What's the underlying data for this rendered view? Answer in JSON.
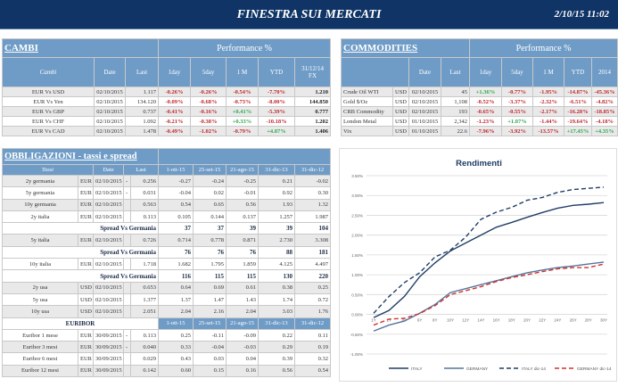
{
  "header": {
    "title": "FINESTRA SUI MERCATI",
    "datetime": "2/10/15 11:02"
  },
  "cambi": {
    "title": "CAMBI",
    "performance": "Performance  %",
    "columns": [
      "Cambi",
      "Date",
      "Last",
      "1day",
      "5day",
      "1 M",
      "YTD",
      "31/12/14 FX"
    ],
    "rows": [
      [
        "EUR Vs USD",
        "02/10/2015",
        "1.117",
        "-0.26%",
        "-0.26%",
        "-0.54%",
        "-7.70%",
        "1.210"
      ],
      [
        "EUR Vs Yen",
        "02/10/2015",
        "134.120",
        "-0.09%",
        "-0.68%",
        "-0.73%",
        "-8.00%",
        "144.850"
      ],
      [
        "EUR Vs GBP",
        "02/10/2015",
        "0.737",
        "-0.41%",
        "-0.16%",
        "+0.41%",
        "-5.39%",
        "0.777"
      ],
      [
        "EUR Vs CHF",
        "02/10/2015",
        "1.092",
        "-0.21%",
        "-0.38%",
        "+0.33%",
        "-10.18%",
        "1.202"
      ],
      [
        "EUR Vs CAD",
        "02/10/2015",
        "1.478",
        "-0.49%",
        "-1.02%",
        "-0.79%",
        "+4.87%",
        "1.406"
      ]
    ]
  },
  "commodities": {
    "title": "COMMODITIES",
    "performance": "Performance  %",
    "columns": [
      "Date",
      "Last",
      "1day",
      "5day",
      "1 M",
      "YTD",
      "2014"
    ],
    "rows": [
      [
        "Crude Oil WTI",
        "USD",
        "02/10/2015",
        "45",
        "+1.36%",
        "-0.77%",
        "-1.95%",
        "-14.87%",
        "-45.36%"
      ],
      [
        "Gold $/Oz",
        "USD",
        "02/10/2015",
        "1,108",
        "-0.52%",
        "-3.37%",
        "-2.32%",
        "-6.51%",
        "-4.82%"
      ],
      [
        "CRB Commodity",
        "USD",
        "02/10/2015",
        "193",
        "-0.65%",
        "-0.55%",
        "-2.17%",
        "-16.28%",
        "-18.85%"
      ],
      [
        "London Metal",
        "USD",
        "01/10/2015",
        "2,342",
        "-1.23%",
        "+1.07%",
        "-1.44%",
        "-19.64%",
        "-4.18%"
      ],
      [
        "Vix",
        "USD",
        "01/10/2015",
        "22.6",
        "-7.96%",
        "-3.92%",
        "-13.57%",
        "+17.45%",
        "+4.35%"
      ]
    ]
  },
  "obbligazioni": {
    "title": "OBBLIGAZIONI - tassi e spread",
    "columns": [
      "Tassi",
      "Date",
      "Last",
      "1-ott-15",
      "25-set-15",
      "21-ago-15",
      "31-dic-13",
      "31-dic-12"
    ],
    "rows": [
      {
        "type": "row",
        "cells": [
          "2y germania",
          "EUR",
          "02/10/2015",
          "-",
          "0.256",
          "-0.27",
          "-0.24",
          "-0.25",
          "0.21",
          "-0.02"
        ]
      },
      {
        "type": "row",
        "cells": [
          "5y germania",
          "EUR",
          "02/10/2015",
          "-",
          "0.031",
          "-0.04",
          "0.02",
          "-0.01",
          "0.92",
          "0.30"
        ]
      },
      {
        "type": "row",
        "cells": [
          "10y germania",
          "EUR",
          "02/10/2015",
          "",
          "0.563",
          "0.54",
          "0.65",
          "0.56",
          "1.93",
          "1.32"
        ]
      },
      {
        "type": "row",
        "cells": [
          "2y italia",
          "EUR",
          "02/10/2015",
          "",
          "0.113",
          "0.105",
          "0.144",
          "0.137",
          "1.257",
          "1.987"
        ]
      },
      {
        "type": "spread",
        "cells": [
          "Spread Vs Germania",
          "37",
          "37",
          "39",
          "39",
          "104",
          "200"
        ]
      },
      {
        "type": "row",
        "cells": [
          "5y italia",
          "EUR",
          "02/10/2015",
          "",
          "0.726",
          "0.714",
          "0.778",
          "0.871",
          "2.730",
          "3.308"
        ]
      },
      {
        "type": "spread",
        "cells": [
          "Spread Vs Germania",
          "76",
          "76",
          "76",
          "88",
          "181",
          "301"
        ]
      },
      {
        "type": "row",
        "cells": [
          "10y italia",
          "EUR",
          "02/10/2015",
          "",
          "1.718",
          "1.682",
          "1.795",
          "1.859",
          "4.125",
          "4.497"
        ]
      },
      {
        "type": "spread",
        "cells": [
          "Spread Vs Germania",
          "116",
          "115",
          "115",
          "130",
          "220",
          "318"
        ]
      },
      {
        "type": "row",
        "cells": [
          "2y usa",
          "USD",
          "02/10/2015",
          "",
          "0.653",
          "0.64",
          "0.69",
          "0.61",
          "0.38",
          "0.25"
        ]
      },
      {
        "type": "row",
        "cells": [
          "5y usa",
          "USD",
          "02/10/2015",
          "",
          "1.377",
          "1.37",
          "1.47",
          "1.43",
          "1.74",
          "0.72"
        ]
      },
      {
        "type": "row",
        "cells": [
          "10y usa",
          "USD",
          "02/10/2015",
          "",
          "2.051",
          "2.04",
          "2.16",
          "2.04",
          "3.03",
          "1.76"
        ]
      },
      {
        "type": "section",
        "cells": [
          "EURIBOR",
          "1-ott-15",
          "25-set-15",
          "21-ago-15",
          "31-dic-13",
          "31-dic-12"
        ]
      },
      {
        "type": "row",
        "cells": [
          "Euribor 1 mese",
          "EUR",
          "30/09/2015",
          "-",
          "0.113",
          "0.25",
          "-0.11",
          "-0.09",
          "0.22",
          "0.11"
        ]
      },
      {
        "type": "row",
        "cells": [
          "Euribor 3 mesi",
          "EUR",
          "30/09/2015",
          "-",
          "0.040",
          "0.33",
          "-0.04",
          "-0.03",
          "0.29",
          "0.19"
        ]
      },
      {
        "type": "row",
        "cells": [
          "Euribor 6 mesi",
          "EUR",
          "30/09/2015",
          "",
          "0.029",
          "0.43",
          "0.03",
          "0.04",
          "0.39",
          "0.32"
        ]
      },
      {
        "type": "row",
        "cells": [
          "Euribor 12 mesi",
          "EUR",
          "30/09/2015",
          "",
          "0.142",
          "0.60",
          "0.15",
          "0.16",
          "0.56",
          "0.54"
        ]
      }
    ]
  },
  "chart_data": {
    "type": "line",
    "title": "Rendimenti",
    "categories": [
      "1Y",
      "2Y",
      "4Y",
      "6Y",
      "8Y",
      "10Y",
      "12Y",
      "14Y",
      "16Y",
      "18Y",
      "20Y",
      "22Y",
      "24Y",
      "26Y",
      "28Y",
      "30Y"
    ],
    "ylim": [
      -1.0,
      3.5
    ],
    "yticks": [
      "-1.00%",
      "-0.50%",
      "0.00%",
      "0.50%",
      "1.00%",
      "1.50%",
      "2.00%",
      "2.50%",
      "3.00%",
      "3.50%"
    ],
    "grid": true,
    "legend": "bottom",
    "series": [
      {
        "name": "ITALY",
        "color": "#1f3d66",
        "dash": false,
        "values": [
          -0.08,
          0.1,
          0.45,
          0.95,
          1.3,
          1.6,
          1.8,
          2.0,
          2.2,
          2.32,
          2.45,
          2.57,
          2.68,
          2.75,
          2.78,
          2.82
        ]
      },
      {
        "name": "GERMANY",
        "color": "#55759c",
        "dash": false,
        "values": [
          -0.42,
          -0.27,
          -0.17,
          0.03,
          0.25,
          0.55,
          0.65,
          0.75,
          0.85,
          0.95,
          1.05,
          1.12,
          1.18,
          1.22,
          1.27,
          1.32
        ]
      },
      {
        "name": "ITALY dic-14",
        "color": "#1f3d66",
        "dash": true,
        "values": [
          0.03,
          0.45,
          0.8,
          1.05,
          1.45,
          1.62,
          1.95,
          2.4,
          2.58,
          2.7,
          2.88,
          2.95,
          3.08,
          3.15,
          3.18,
          3.21
        ]
      },
      {
        "name": "GERMANY dic-14",
        "color": "#d0312d",
        "dash": true,
        "values": [
          -0.27,
          -0.12,
          -0.1,
          0.02,
          0.22,
          0.5,
          0.6,
          0.7,
          0.83,
          0.93,
          1.0,
          1.08,
          1.15,
          1.18,
          1.18,
          1.27
        ]
      }
    ]
  }
}
